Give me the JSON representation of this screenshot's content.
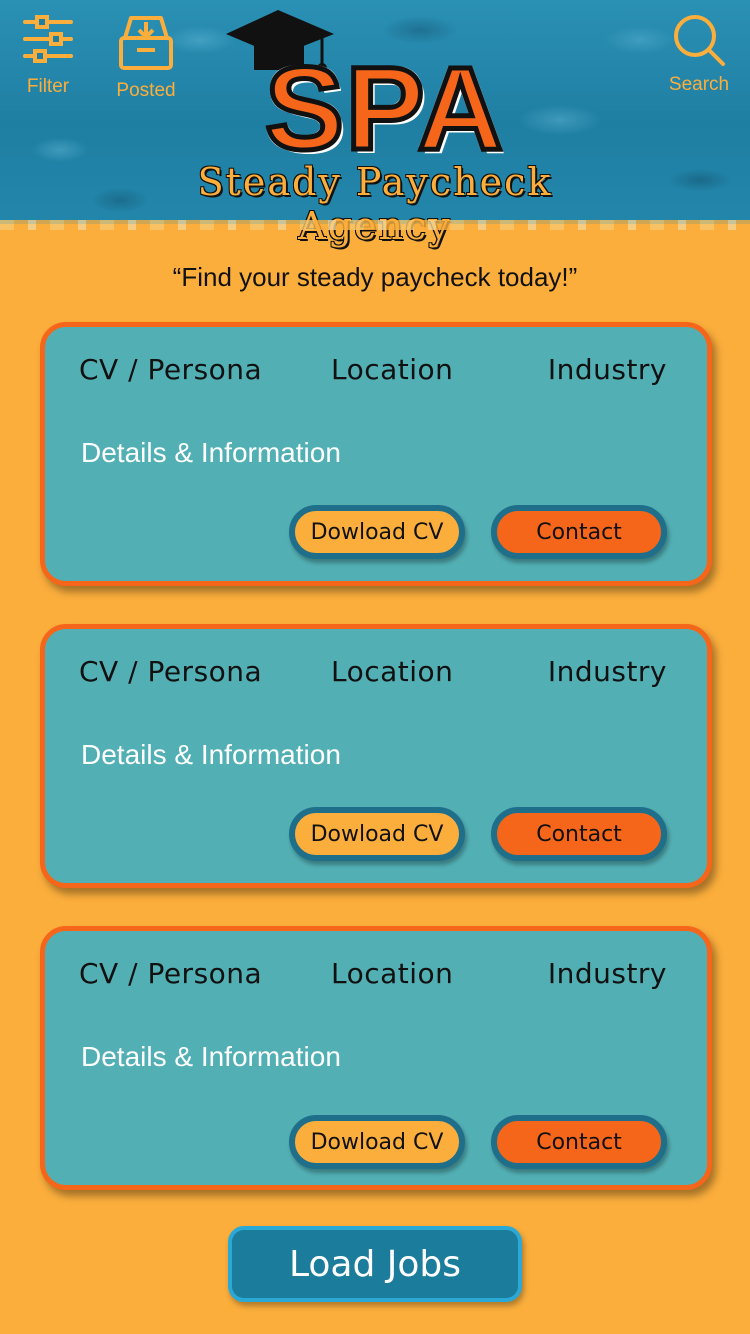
{
  "header": {
    "filter_label": "Filter",
    "posted_label": "Posted",
    "search_label": "Search",
    "logo_text": "SPA",
    "logo_subtitle": "Steady Paycheck Agency"
  },
  "tagline": "“Find your steady paycheck today!”",
  "cards": [
    {
      "persona": "CV / Persona",
      "location": "Location",
      "industry": "Industry",
      "details": "Details & Information",
      "download": "Dowload CV",
      "contact": "Contact"
    },
    {
      "persona": "CV / Persona",
      "location": "Location",
      "industry": "Industry",
      "details": "Details & Information",
      "download": "Dowload CV",
      "contact": "Contact"
    },
    {
      "persona": "CV / Persona",
      "location": "Location",
      "industry": "Industry",
      "details": "Details & Information",
      "download": "Dowload CV",
      "contact": "Contact"
    }
  ],
  "load_jobs": "Load Jobs",
  "colors": {
    "background": "#fbae3c",
    "card": "#52b0b5",
    "accent": "#f5661a",
    "header": "#1f7fa3"
  },
  "icons": [
    "sliders-icon",
    "download-tray-icon",
    "search-icon",
    "graduation-cap-icon"
  ]
}
